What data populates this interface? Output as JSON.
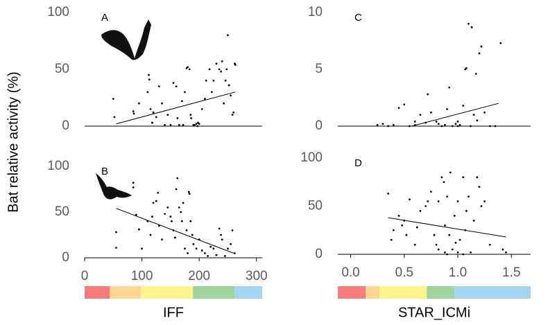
{
  "chart_data": [
    {
      "type": "scatter",
      "title": "A",
      "ylabel": "Bat relative activity (%)",
      "color": "#000000",
      "x": [
        50,
        52,
        85,
        86,
        95,
        110,
        112,
        113,
        115,
        118,
        120,
        125,
        130,
        135,
        140,
        145,
        150,
        155,
        160,
        162,
        165,
        170,
        172,
        175,
        178,
        180,
        183,
        185,
        186,
        190,
        192,
        195,
        197,
        198,
        200,
        205,
        210,
        212,
        218,
        222,
        225,
        230,
        235,
        238,
        240,
        243,
        246,
        248,
        250,
        252,
        255,
        258,
        262,
        263,
        260
      ],
      "y": [
        24,
        8,
        13,
        11,
        20,
        30,
        45,
        41,
        15,
        3,
        12,
        8,
        35,
        20,
        1,
        10,
        1,
        38,
        35,
        7,
        1,
        22,
        1,
        30,
        51,
        52,
        50,
        10,
        7,
        1,
        1,
        2,
        0,
        3,
        2,
        15,
        24,
        40,
        50,
        30,
        40,
        55,
        50,
        48,
        57,
        20,
        40,
        50,
        80,
        36,
        27,
        10,
        55,
        54,
        12
      ],
      "trendline": {
        "x": [
          55,
          263
        ],
        "y": [
          2,
          30
        ]
      },
      "xlim": [
        0,
        310
      ],
      "ylim": [
        0,
        100
      ],
      "yticks": [
        0,
        50,
        100
      ]
    },
    {
      "type": "scatter",
      "title": "B",
      "xlabel": "IFF",
      "color": "#000000",
      "x": [
        55,
        55,
        85,
        85,
        90,
        95,
        100,
        110,
        115,
        118,
        120,
        125,
        128,
        130,
        135,
        140,
        145,
        150,
        152,
        155,
        158,
        160,
        162,
        165,
        168,
        170,
        172,
        175,
        178,
        180,
        182,
        183,
        185,
        188,
        190,
        195,
        200,
        205,
        210,
        215,
        220,
        225,
        230,
        235,
        238,
        240,
        245,
        250,
        255,
        258,
        262
      ],
      "y": [
        11,
        28,
        82,
        77,
        47,
        31,
        10,
        40,
        25,
        45,
        60,
        62,
        71,
        35,
        20,
        48,
        55,
        45,
        40,
        30,
        22,
        75,
        87,
        55,
        50,
        40,
        60,
        10,
        30,
        5,
        72,
        70,
        40,
        25,
        15,
        10,
        20,
        8,
        5,
        2,
        12,
        10,
        3,
        32,
        25,
        20,
        2,
        10,
        15,
        30,
        5
      ],
      "trendline": {
        "x": [
          55,
          260
        ],
        "y": [
          54,
          5
        ]
      },
      "xlim": [
        0,
        310
      ],
      "ylim": [
        0,
        100
      ],
      "xticks": [
        0,
        100,
        200,
        300
      ],
      "yticks": [
        0,
        50,
        100
      ],
      "color_bands": [
        {
          "from": 0,
          "to": 44,
          "color": "#f87a7a"
        },
        {
          "from": 44,
          "to": 98,
          "color": "#fdd58c"
        },
        {
          "from": 98,
          "to": 189,
          "color": "#fdf58c"
        },
        {
          "from": 189,
          "to": 262,
          "color": "#9fd49c"
        },
        {
          "from": 262,
          "to": 310,
          "color": "#a4d4f4"
        }
      ]
    },
    {
      "type": "scatter",
      "title": "C",
      "color": "#000000",
      "x": [
        0.25,
        0.3,
        0.35,
        0.4,
        0.45,
        0.5,
        0.55,
        0.6,
        0.65,
        0.7,
        0.72,
        0.75,
        0.8,
        0.85,
        0.88,
        0.9,
        0.92,
        0.95,
        0.98,
        1.0,
        1.02,
        1.05,
        1.07,
        1.08,
        1.1,
        1.12,
        1.13,
        1.15,
        1.17,
        1.18,
        1.2,
        1.22,
        1.25,
        1.3,
        1.35,
        1.4,
        0.6,
        0.82,
        1.0
      ],
      "y": [
        0.1,
        0.2,
        0,
        0.1,
        1.6,
        1.9,
        0,
        0.1,
        1,
        0.3,
        2.8,
        1.2,
        0.4,
        0,
        0.1,
        1.5,
        3.4,
        0,
        0.2,
        0.4,
        0.1,
        1.8,
        5,
        5.1,
        9,
        0,
        8.7,
        1,
        4.6,
        0.5,
        6.4,
        7,
        1.2,
        0,
        0,
        7.3,
        0.4,
        0.2,
        0
      ],
      "trendline": {
        "x": [
          0.57,
          1.38
        ],
        "y": [
          0,
          2
        ]
      },
      "xlim": [
        -0.12,
        1.68
      ],
      "ylim": [
        0,
        10
      ],
      "yticks": [
        0,
        5,
        10
      ]
    },
    {
      "type": "scatter",
      "title": "D",
      "xlabel": "STAR_ICMi",
      "color": "#000000",
      "x": [
        0.35,
        0.38,
        0.4,
        0.45,
        0.48,
        0.5,
        0.52,
        0.55,
        0.6,
        0.62,
        0.65,
        0.7,
        0.72,
        0.75,
        0.78,
        0.8,
        0.82,
        0.85,
        0.87,
        0.88,
        0.9,
        0.92,
        0.93,
        0.95,
        0.97,
        1.0,
        1.02,
        1.05,
        1.07,
        1.08,
        1.1,
        1.12,
        1.15,
        1.18,
        1.2,
        1.22,
        1.25,
        1.0,
        0.98,
        1.3,
        1.42,
        1.45,
        0.9,
        1.05,
        0.82,
        0.88
      ],
      "y": [
        63,
        15,
        25,
        40,
        30,
        35,
        20,
        57,
        10,
        28,
        45,
        50,
        55,
        65,
        20,
        10,
        5,
        80,
        75,
        30,
        60,
        20,
        85,
        5,
        40,
        55,
        15,
        80,
        25,
        45,
        60,
        2,
        35,
        80,
        70,
        50,
        55,
        2,
        12,
        10,
        5,
        2,
        0,
        0,
        55,
        2
      ],
      "trendline": {
        "x": [
          0.35,
          1.45
        ],
        "y": [
          38,
          18
        ]
      },
      "xlim": [
        -0.12,
        1.68
      ],
      "ylim": [
        0,
        100
      ],
      "xticks": [
        {
          "value": 0,
          "label": "0.0"
        },
        0.5,
        {
          "value": 1,
          "label": "1.0"
        },
        1.5
      ],
      "yticks": [
        0,
        50,
        100
      ],
      "color_bands": [
        {
          "from": -0.12,
          "to": 0.14,
          "color": "#f87a7a"
        },
        {
          "from": 0.14,
          "to": 0.27,
          "color": "#fdd58c"
        },
        {
          "from": 0.27,
          "to": 0.71,
          "color": "#fdf58c"
        },
        {
          "from": 0.71,
          "to": 0.97,
          "color": "#9fd49c"
        },
        {
          "from": 0.97,
          "to": 1.68,
          "color": "#a4d4f4"
        }
      ]
    }
  ]
}
